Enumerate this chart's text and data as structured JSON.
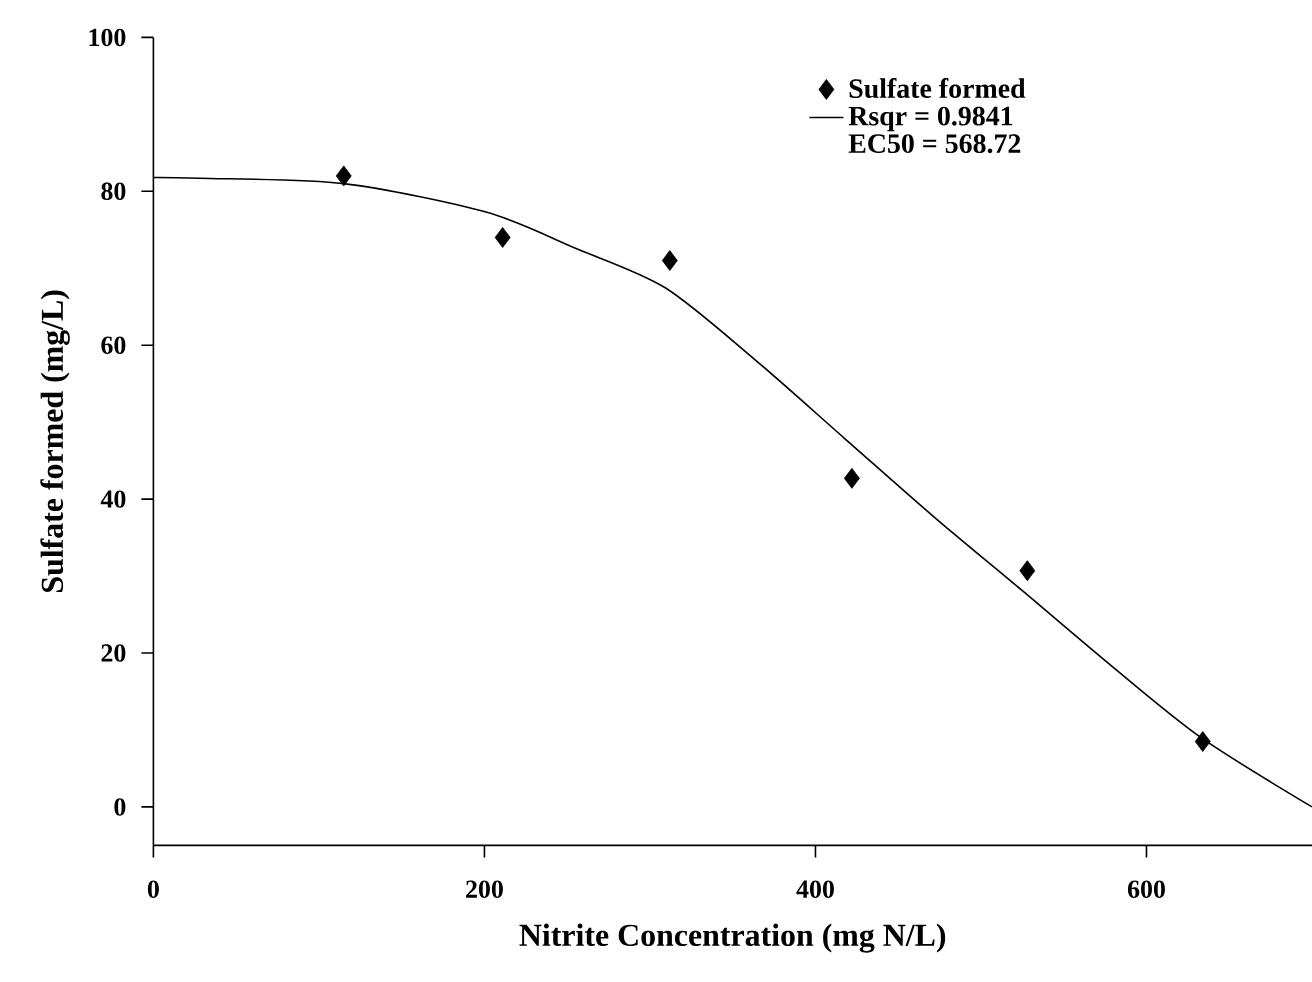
{
  "chart_data": {
    "type": "scatter",
    "xlabel": "Nitrite Concentration (mg N/L)",
    "ylabel": "Sulfate formed (mg/L)",
    "xlim": [
      0,
      700
    ],
    "ylim": [
      -5,
      100
    ],
    "xticks": [
      0,
      200,
      400,
      600
    ],
    "yticks": [
      0,
      20,
      40,
      60,
      80,
      100
    ],
    "series": [
      {
        "name": "Sulfate formed",
        "color": "#000000",
        "marker": "diamond",
        "x": [
          115,
          211,
          312,
          422,
          528,
          634
        ],
        "values": [
          82.0,
          74.0,
          71.0,
          42.7,
          30.7,
          8.5
        ]
      },
      {
        "name": "Rsqr = 0.9841",
        "type": "line",
        "color": "#000000",
        "marker": "none",
        "line_style": "solid",
        "x": [
          0,
          28,
          115,
          201,
          255,
          309,
          363,
          417,
          471,
          525,
          579,
          633,
          700
        ],
        "values": [
          81.8,
          81.7,
          81.0,
          77.3,
          72.6,
          67.5,
          58.2,
          48.0,
          37.8,
          28.1,
          18.3,
          9.0,
          0.0
        ]
      }
    ],
    "annotations": [
      "EC50 = 568.72"
    ],
    "legend": "top right",
    "grid": false
  }
}
